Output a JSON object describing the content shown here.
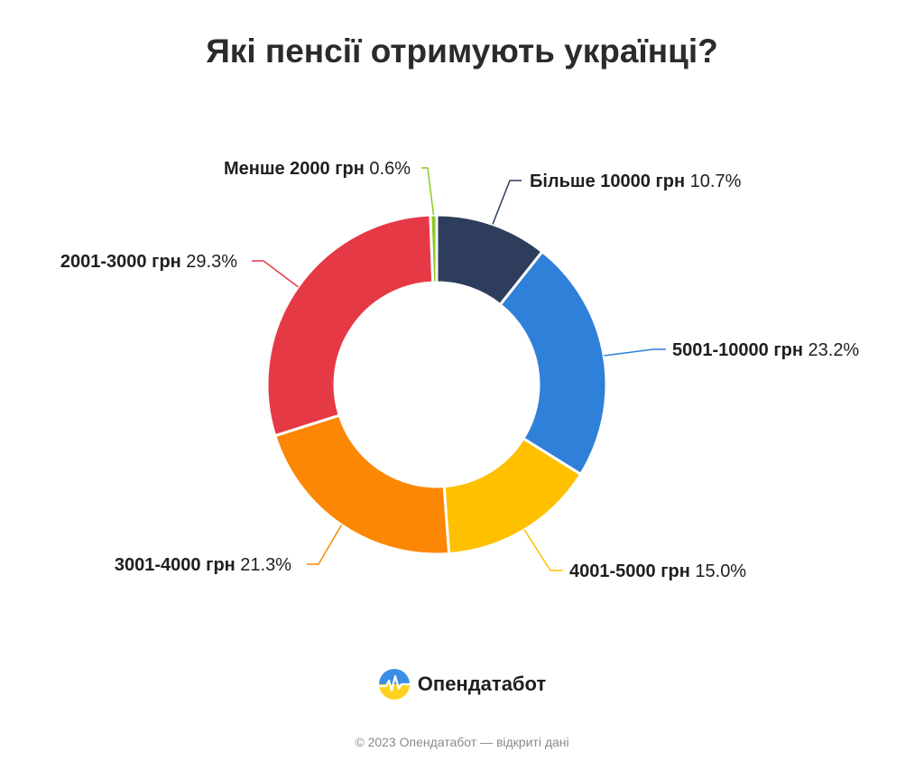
{
  "title": "Які пенсії отримують українці?",
  "chart_data": {
    "type": "pie",
    "donut": true,
    "title": "Які пенсії отримують українці?",
    "slices": [
      {
        "label": "Більше 10000 грн",
        "value": 10.7,
        "value_label": "10.7%",
        "color": "#2e3d5c"
      },
      {
        "label": "5001-10000 грн",
        "value": 23.2,
        "value_label": "23.2%",
        "color": "#2f80d9"
      },
      {
        "label": "4001-5000 грн",
        "value": 15.0,
        "value_label": "15.0%",
        "color": "#ffc000"
      },
      {
        "label": "3001-4000 грн",
        "value": 21.3,
        "value_label": "21.3%",
        "color": "#fb8704"
      },
      {
        "label": "2001-3000 грн",
        "value": 29.3,
        "value_label": "29.3%",
        "color": "#e63946"
      },
      {
        "label": "Менше 2000 грн",
        "value": 0.6,
        "value_label": "0.6%",
        "color": "#8ac926"
      }
    ]
  },
  "brand": {
    "name": "Опендатабот",
    "logo_icon": "opendatabot-logo-icon"
  },
  "footer": {
    "text": "© 2023 Опендатабот — відкриті дані"
  }
}
